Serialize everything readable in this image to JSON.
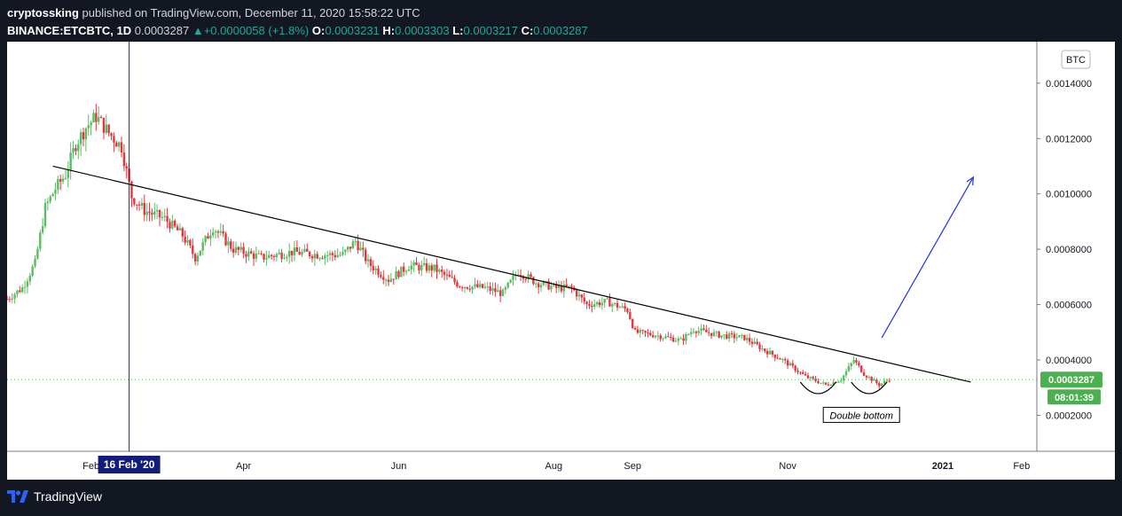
{
  "header": {
    "author": "cryptossking",
    "published_text": "published on TradingView.com, December 11, 2020 15:58:22 UTC",
    "symbol": "BINANCE:ETCBTC, 1D",
    "last": "0.0003287",
    "change": "+0.0000058 (+1.8%)",
    "open_label": "O:",
    "open": "0.0003231",
    "high_label": "H:",
    "high": "0.0003303",
    "low_label": "L:",
    "low": "0.0003217",
    "close_label": "C:",
    "close": "0.0003287"
  },
  "footer": {
    "brand": "TradingView"
  },
  "colors": {
    "up": "#26a69a",
    "down": "#ef5350",
    "candle_up": "#5dbb63",
    "candle_down": "#e0383e",
    "crosshair": "#1e22aa",
    "accent": "#4caf50"
  },
  "chart_data": {
    "type": "candlestick",
    "currency_badge": "BTC",
    "ylim": [
      7e-05,
      0.00155
    ],
    "y_ticks": [
      "0.0002000",
      "0.0004000",
      "0.0006000",
      "0.0008000",
      "0.0010000",
      "0.0012000",
      "0.0014000"
    ],
    "x_range": [
      "2019-12-30",
      "2021-02-07"
    ],
    "x_ticks": [
      {
        "date": "2020-02-01",
        "label": "Feb"
      },
      {
        "date": "2020-04-01",
        "label": "Apr"
      },
      {
        "date": "2020-06-01",
        "label": "Jun"
      },
      {
        "date": "2020-08-01",
        "label": "Aug"
      },
      {
        "date": "2020-09-01",
        "label": "Sep"
      },
      {
        "date": "2020-11-01",
        "label": "Nov"
      },
      {
        "date": "2021-01-01",
        "label": "2021"
      },
      {
        "date": "2021-02-01",
        "label": "Feb"
      }
    ],
    "last_price": 0.0003287,
    "last_price_label": "0.0003287",
    "countdown_label": "08:01:39",
    "crosshair": {
      "date": "2020-02-16",
      "label": "16 Feb '20"
    },
    "close_path": [
      [
        "2019-12-30",
        0.00062
      ],
      [
        "2020-01-05",
        0.00066
      ],
      [
        "2020-01-10",
        0.00075
      ],
      [
        "2020-01-14",
        0.00095
      ],
      [
        "2020-01-18",
        0.00102
      ],
      [
        "2020-01-22",
        0.00107
      ],
      [
        "2020-01-26",
        0.00118
      ],
      [
        "2020-01-30",
        0.00124
      ],
      [
        "2020-02-03",
        0.00128
      ],
      [
        "2020-02-08",
        0.00122
      ],
      [
        "2020-02-13",
        0.00117
      ],
      [
        "2020-02-17",
        0.00099
      ],
      [
        "2020-02-22",
        0.00094
      ],
      [
        "2020-03-01",
        0.00091
      ],
      [
        "2020-03-08",
        0.00085
      ],
      [
        "2020-03-13",
        0.00077
      ],
      [
        "2020-03-20",
        0.00088
      ],
      [
        "2020-03-28",
        0.0008
      ],
      [
        "2020-04-08",
        0.00077
      ],
      [
        "2020-04-20",
        0.00079
      ],
      [
        "2020-05-01",
        0.00078
      ],
      [
        "2020-05-10",
        0.00078
      ],
      [
        "2020-05-15",
        0.00083
      ],
      [
        "2020-05-20",
        0.00075
      ],
      [
        "2020-05-28",
        0.00069
      ],
      [
        "2020-06-05",
        0.00074
      ],
      [
        "2020-06-15",
        0.00073
      ],
      [
        "2020-06-25",
        0.00067
      ],
      [
        "2020-07-05",
        0.00066
      ],
      [
        "2020-07-12",
        0.00064
      ],
      [
        "2020-07-18",
        0.00072
      ],
      [
        "2020-07-25",
        0.00068
      ],
      [
        "2020-08-02",
        0.00066
      ],
      [
        "2020-08-08",
        0.00066
      ],
      [
        "2020-08-14",
        0.0006
      ],
      [
        "2020-08-22",
        0.00061
      ],
      [
        "2020-08-30",
        0.00058
      ],
      [
        "2020-09-02",
        0.0005
      ],
      [
        "2020-09-10",
        0.00049
      ],
      [
        "2020-09-20",
        0.00047
      ],
      [
        "2020-09-25",
        0.00051
      ],
      [
        "2020-10-05",
        0.00049
      ],
      [
        "2020-10-15",
        0.00048
      ],
      [
        "2020-10-22",
        0.00044
      ],
      [
        "2020-10-30",
        0.0004
      ],
      [
        "2020-11-08",
        0.00034
      ],
      [
        "2020-11-16",
        0.00031
      ],
      [
        "2020-11-22",
        0.00033
      ],
      [
        "2020-11-27",
        0.0004
      ],
      [
        "2020-12-01",
        0.00035
      ],
      [
        "2020-12-07",
        0.00031
      ],
      [
        "2020-12-11",
        0.00033
      ]
    ],
    "annotations": {
      "trendline": {
        "from": [
          "2020-01-17",
          0.0011
        ],
        "to": [
          "2021-01-12",
          0.00032
        ]
      },
      "arrow": {
        "from": [
          "2020-12-08",
          0.00048
        ],
        "to": [
          "2021-01-13",
          0.00106
        ]
      },
      "arcs": [
        {
          "from": "2020-11-06",
          "to": "2020-11-20",
          "y": 0.00032
        },
        {
          "from": "2020-11-26",
          "to": "2020-12-10",
          "y": 0.00032
        }
      ],
      "text_box": {
        "date": "2020-11-30",
        "y": 0.0002,
        "label": "Double bottom"
      }
    }
  }
}
